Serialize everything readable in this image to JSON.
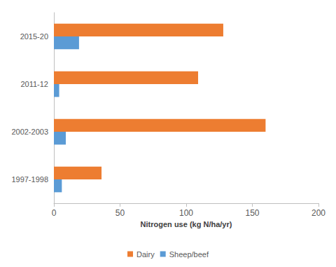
{
  "chart_data": {
    "type": "bar",
    "orientation": "horizontal",
    "xlabel": "Nitrogen use (kg N/ha/yr)",
    "categories": [
      "1997-1998",
      "2002-2003",
      "2011-12",
      "2015-20"
    ],
    "series": [
      {
        "name": "Dairy",
        "color": "#ed7d31",
        "values": [
          36,
          160,
          109,
          128
        ]
      },
      {
        "name": "Sheep/beef",
        "color": "#5b9bd5",
        "values": [
          6,
          9,
          4,
          19
        ]
      }
    ],
    "xlim": [
      0,
      200
    ],
    "xticks": [
      0,
      50,
      100,
      150,
      200
    ],
    "grid": false,
    "legend": "bottom"
  }
}
